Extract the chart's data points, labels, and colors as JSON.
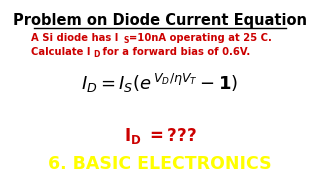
{
  "title": "Problem on Diode Current Equation",
  "subtitle_line1": "A Si diode has I",
  "subtitle_line1_s": "S",
  "subtitle_line1_rest": "=10nA operating at 25 C.",
  "subtitle_line2_start": "Calculate I",
  "subtitle_line2_D": "D",
  "subtitle_line2_rest": " for a forward bias of 0.6V.",
  "footer_text": "6. BASIC ELECTRONICS",
  "bg_color": "#ffffff",
  "footer_bg": "#000000",
  "title_color": "#000000",
  "subtitle_color": "#cc0000",
  "footer_color": "#ffff00",
  "equation_color": "#000000",
  "answer_color": "#cc0000"
}
